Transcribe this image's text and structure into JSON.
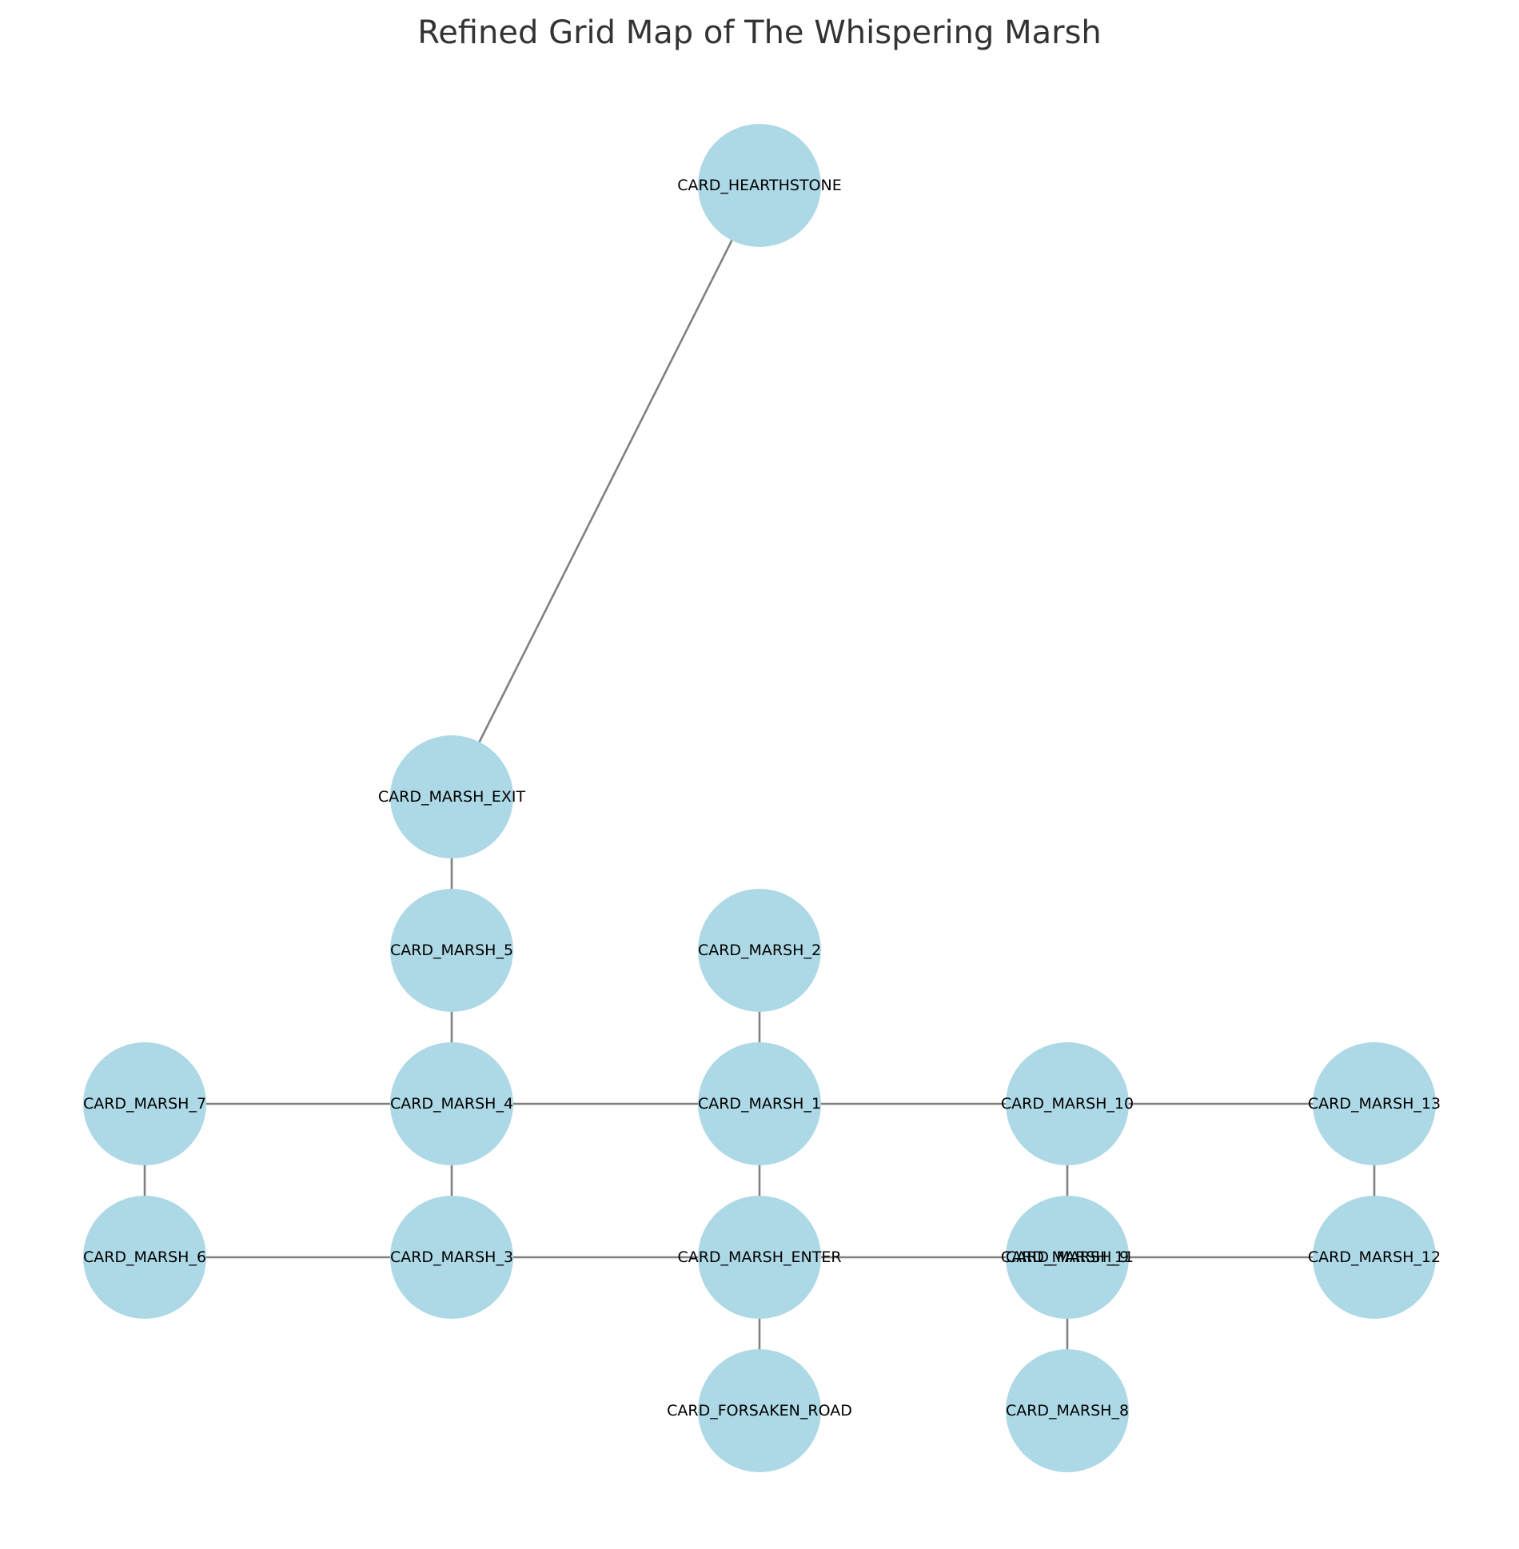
{
  "title": "Refined Grid Map of The Whispering Marsh",
  "colors": {
    "node_fill": "#add8e6",
    "edge_color": "#808080",
    "label_color": "#000000",
    "title_color": "#333333"
  },
  "nodes": [
    {
      "id": "CARD_HEARTHSTONE",
      "label": "CARD_HEARTHSTONE"
    },
    {
      "id": "CARD_MARSH_EXIT",
      "label": "CARD_MARSH_EXIT"
    },
    {
      "id": "CARD_MARSH_5",
      "label": "CARD_MARSH_5"
    },
    {
      "id": "CARD_MARSH_2",
      "label": "CARD_MARSH_2"
    },
    {
      "id": "CARD_MARSH_7",
      "label": "CARD_MARSH_7"
    },
    {
      "id": "CARD_MARSH_4",
      "label": "CARD_MARSH_4"
    },
    {
      "id": "CARD_MARSH_1",
      "label": "CARD_MARSH_1"
    },
    {
      "id": "CARD_MARSH_10",
      "label": "CARD_MARSH_10"
    },
    {
      "id": "CARD_MARSH_13",
      "label": "CARD_MARSH_13"
    },
    {
      "id": "CARD_MARSH_6",
      "label": "CARD_MARSH_6"
    },
    {
      "id": "CARD_MARSH_3",
      "label": "CARD_MARSH_3"
    },
    {
      "id": "CARD_MARSH_ENTER",
      "label": "CARD_MARSH_ENTER"
    },
    {
      "id": "CARD_MARSH_9",
      "label": "CARD_MARSH_9"
    },
    {
      "id": "CARD_MARSH_11",
      "label": "CARD_MARSH_11"
    },
    {
      "id": "CARD_MARSH_12",
      "label": "CARD_MARSH_12"
    },
    {
      "id": "CARD_FORSAKEN_ROAD",
      "label": "CARD_FORSAKEN_ROAD"
    },
    {
      "id": "CARD_MARSH_8",
      "label": "CARD_MARSH_8"
    }
  ],
  "edges": [
    [
      "CARD_HEARTHSTONE",
      "CARD_MARSH_EXIT"
    ],
    [
      "CARD_MARSH_EXIT",
      "CARD_MARSH_5"
    ],
    [
      "CARD_MARSH_5",
      "CARD_MARSH_4"
    ],
    [
      "CARD_MARSH_2",
      "CARD_MARSH_1"
    ],
    [
      "CARD_MARSH_7",
      "CARD_MARSH_4"
    ],
    [
      "CARD_MARSH_4",
      "CARD_MARSH_1"
    ],
    [
      "CARD_MARSH_1",
      "CARD_MARSH_10"
    ],
    [
      "CARD_MARSH_10",
      "CARD_MARSH_13"
    ],
    [
      "CARD_MARSH_7",
      "CARD_MARSH_6"
    ],
    [
      "CARD_MARSH_4",
      "CARD_MARSH_3"
    ],
    [
      "CARD_MARSH_1",
      "CARD_MARSH_ENTER"
    ],
    [
      "CARD_MARSH_10",
      "CARD_MARSH_9"
    ],
    [
      "CARD_MARSH_13",
      "CARD_MARSH_12"
    ],
    [
      "CARD_MARSH_6",
      "CARD_MARSH_3"
    ],
    [
      "CARD_MARSH_3",
      "CARD_MARSH_ENTER"
    ],
    [
      "CARD_MARSH_ENTER",
      "CARD_MARSH_11"
    ],
    [
      "CARD_MARSH_11",
      "CARD_MARSH_12"
    ],
    [
      "CARD_MARSH_ENTER",
      "CARD_FORSAKEN_ROAD"
    ],
    [
      "CARD_MARSH_9",
      "CARD_MARSH_8"
    ]
  ]
}
